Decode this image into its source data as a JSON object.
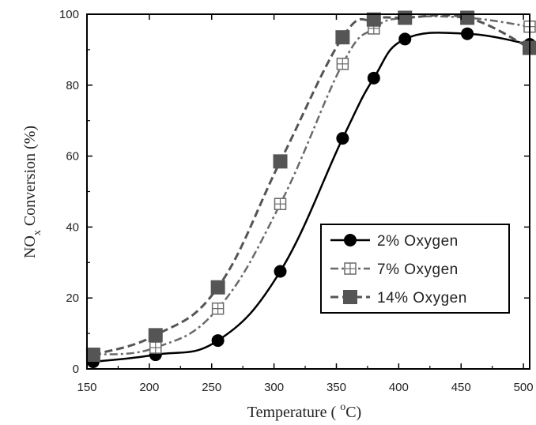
{
  "chart_data": {
    "type": "line",
    "xlabel": "Temperature ( °C)",
    "xlabel_main": "Temperature ( ",
    "xlabel_sup": "o",
    "xlabel_end": "C)",
    "ylabel": "NOx Conversion (%)",
    "ylabel_main": "NO",
    "ylabel_sub": "x",
    "ylabel_end": " Conversion (%)",
    "xlim": [
      150,
      505
    ],
    "ylim": [
      0,
      100
    ],
    "xticks": [
      150,
      200,
      250,
      300,
      350,
      400,
      450,
      500
    ],
    "yticks": [
      0,
      20,
      40,
      60,
      80,
      100
    ],
    "grid": false,
    "legend_position": "center-right",
    "series": [
      {
        "name": "2% Oxygen",
        "marker": "circle",
        "line_style": "solid",
        "color": "#000000",
        "x": [
          155,
          205,
          255,
          305,
          355,
          380,
          405,
          455,
          505
        ],
        "y": [
          2,
          4,
          8,
          27.5,
          65,
          82,
          93,
          94.5,
          91.5
        ]
      },
      {
        "name": "7% Oxygen",
        "marker": "open-square-plus",
        "line_style": "dash-dot",
        "color": "#6a6a6a",
        "x": [
          155,
          205,
          255,
          305,
          355,
          380,
          405,
          455,
          505
        ],
        "y": [
          4,
          6,
          17,
          46.5,
          86,
          96,
          99,
          99,
          96.5
        ]
      },
      {
        "name": "14% Oxygen",
        "marker": "filled-square",
        "line_style": "dashed",
        "color": "#555555",
        "x": [
          155,
          205,
          255,
          305,
          355,
          380,
          405,
          455,
          505
        ],
        "y": [
          4,
          9.5,
          23,
          58.5,
          93.5,
          98.5,
          99,
          99,
          90.5
        ]
      }
    ]
  }
}
